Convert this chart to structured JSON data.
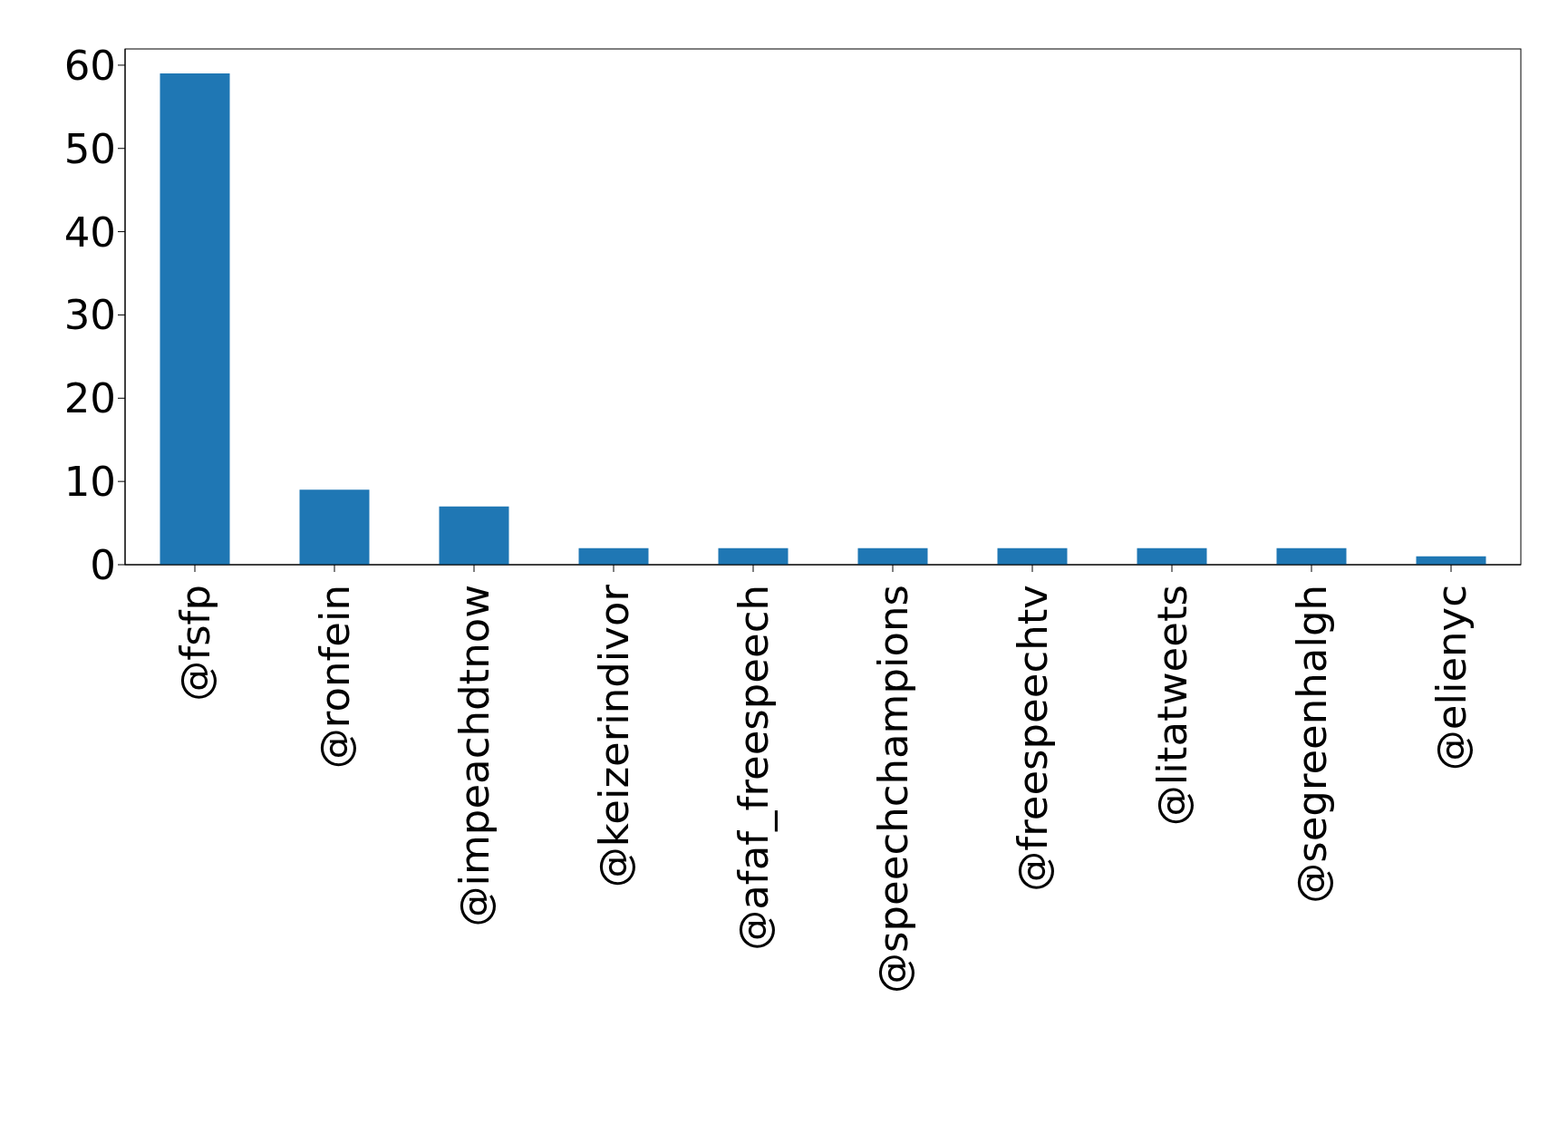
{
  "chart_data": {
    "type": "bar",
    "categories": [
      "@fsfp",
      "@ronfein",
      "@impeachdtnow",
      "@keizerindivor",
      "@afaf_freespeech",
      "@speechchampions",
      "@freespeechtv",
      "@litatweets",
      "@segreenhalgh",
      "@elienyc"
    ],
    "values": [
      59,
      9,
      7,
      2,
      2,
      2,
      2,
      2,
      2,
      1
    ],
    "color": "#1f77b4",
    "ylim": [
      0,
      61.95
    ],
    "yticks": [
      0,
      10,
      20,
      30,
      40,
      50,
      60
    ],
    "grid": false,
    "legend": false
  }
}
